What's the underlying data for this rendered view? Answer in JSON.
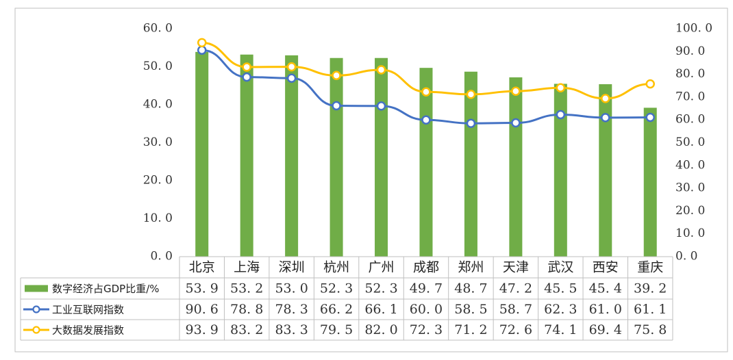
{
  "chart_data": {
    "type": "bar+line",
    "categories": [
      "北京",
      "上海",
      "深圳",
      "杭州",
      "广州",
      "成都",
      "郑州",
      "天津",
      "武汉",
      "西安",
      "重庆"
    ],
    "left_axis": {
      "ylim": [
        0,
        60
      ],
      "ticks": [
        "0. 0",
        "10. 0",
        "20. 0",
        "30. 0",
        "40. 0",
        "50. 0",
        "60. 0"
      ]
    },
    "right_axis": {
      "ylim": [
        0,
        100
      ],
      "ticks": [
        "0. 0",
        "10. 0",
        "20. 0",
        "30. 0",
        "40. 0",
        "50. 0",
        "60. 0",
        "70. 0",
        "80. 0",
        "90. 0",
        "100. 0"
      ]
    },
    "series": [
      {
        "name": "数字经济占GDP比重/%",
        "kind": "bar",
        "axis": "left",
        "color": "#70AD47",
        "values": [
          53.9,
          53.2,
          53.0,
          52.3,
          52.3,
          49.7,
          48.7,
          47.2,
          45.5,
          45.4,
          39.2
        ],
        "labels": [
          "53. 9",
          "53. 2",
          "53. 0",
          "52. 3",
          "52. 3",
          "49. 7",
          "48. 7",
          "47. 2",
          "45. 5",
          "45. 4",
          "39. 2"
        ]
      },
      {
        "name": "工业互联网指数",
        "kind": "line",
        "axis": "right",
        "color": "#4472C4",
        "values": [
          90.6,
          78.8,
          78.3,
          66.2,
          66.1,
          60.0,
          58.5,
          58.7,
          62.3,
          61.0,
          61.1
        ],
        "labels": [
          "90. 6",
          "78. 8",
          "78. 3",
          "66. 2",
          "66. 1",
          "60. 0",
          "58. 5",
          "58. 7",
          "62. 3",
          "61. 0",
          "61. 1"
        ]
      },
      {
        "name": "大数据发展指数",
        "kind": "line",
        "axis": "right",
        "color": "#FFC000",
        "values": [
          93.9,
          83.2,
          83.3,
          79.5,
          82.0,
          72.3,
          71.2,
          72.6,
          74.1,
          69.4,
          75.8
        ],
        "labels": [
          "93. 9",
          "83. 2",
          "83. 3",
          "79. 5",
          "82. 0",
          "72. 3",
          "71. 2",
          "72. 6",
          "74. 1",
          "69. 4",
          "75. 8"
        ]
      }
    ],
    "grid": false,
    "legend": "data-table"
  }
}
